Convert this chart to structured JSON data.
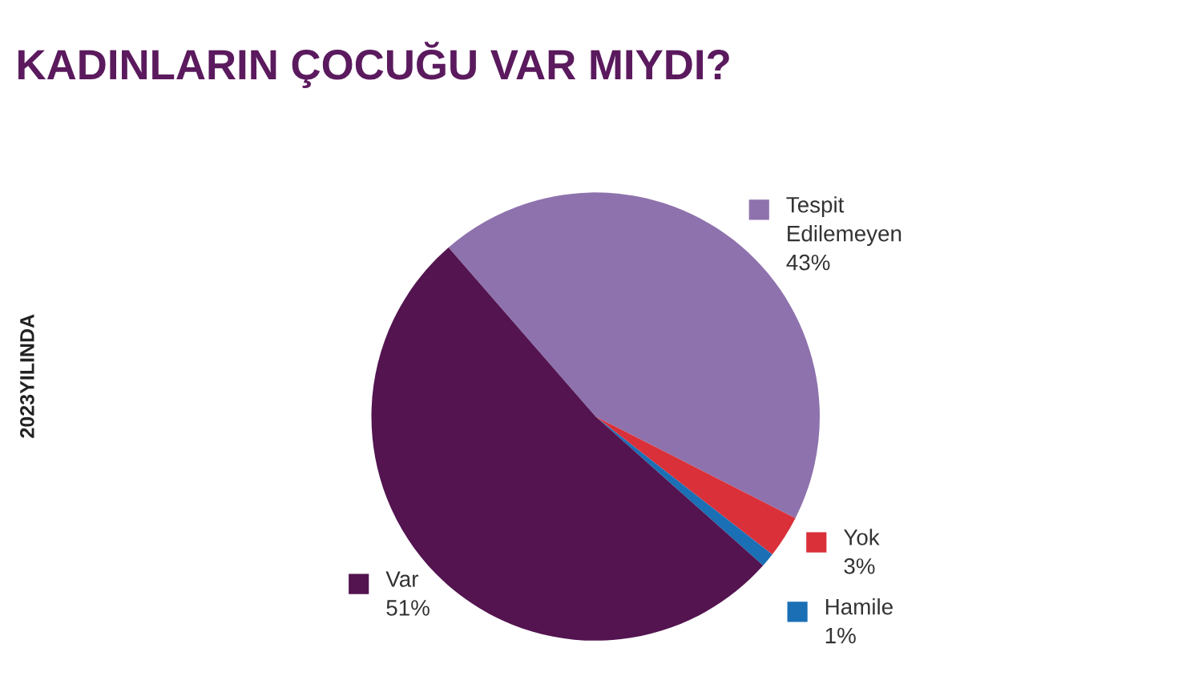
{
  "chart_data": {
    "type": "pie",
    "title": "KADINLARIN ÇOCUĞU VAR MIYDI?",
    "annotations": [
      "2023YILINDA"
    ],
    "categories": [
      "Tespit\nEdilemeyen",
      "Yok",
      "Hamile",
      "Var"
    ],
    "values": [
      43,
      3,
      1,
      51
    ],
    "value_labels": [
      "43%",
      "3%",
      "1%",
      "51%"
    ],
    "colors": [
      "#8e72ad",
      "#d9303a",
      "#1a6fb5",
      "#531450"
    ],
    "legend": "right"
  }
}
